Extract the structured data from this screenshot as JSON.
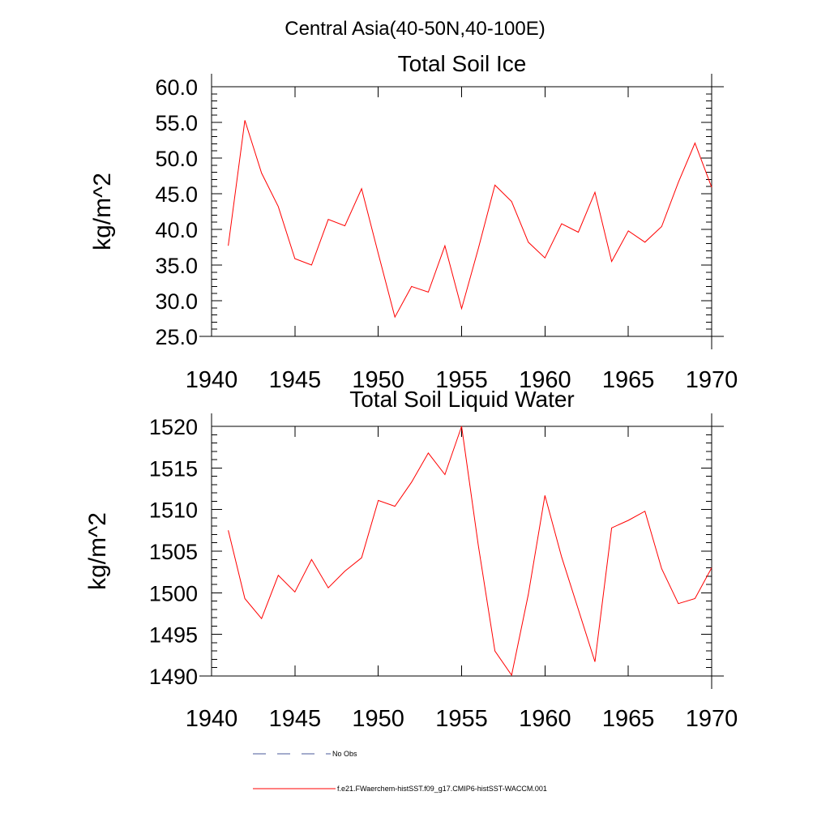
{
  "figure": {
    "title": "Central Asia(40-50N,40-100E)"
  },
  "chart_data": [
    {
      "type": "line",
      "title": "Total Soil Ice",
      "xlabel": "",
      "ylabel": "kg/m^2",
      "xlim": [
        1940,
        1970
      ],
      "ylim": [
        25,
        60
      ],
      "x_ticks": [
        1940,
        1945,
        1950,
        1955,
        1960,
        1965,
        1970
      ],
      "x_tick_labels": [
        "1940",
        "1945",
        "1950",
        "1955",
        "1960",
        "1965",
        "1970"
      ],
      "y_ticks": [
        25,
        30,
        35,
        40,
        45,
        50,
        55,
        60
      ],
      "y_tick_labels": [
        "25.0",
        "30.0",
        "35.0",
        "40.0",
        "45.0",
        "50.0",
        "55.0",
        "60.0"
      ],
      "grid": false,
      "series": [
        {
          "name": "f.e21.FWaerchem-histSST.f09_g17.CMIP6-histSST-WACCM.001",
          "color": "#ff0000",
          "x": [
            1941,
            1942,
            1943,
            1944,
            1945,
            1946,
            1947,
            1948,
            1949,
            1950,
            1951,
            1952,
            1953,
            1954,
            1955,
            1956,
            1957,
            1958,
            1959,
            1960,
            1961,
            1962,
            1963,
            1964,
            1965,
            1966,
            1967,
            1968,
            1969,
            1970
          ],
          "values": [
            37.7,
            55.3,
            47.9,
            43.2,
            35.9,
            35.0,
            41.4,
            40.5,
            45.7,
            36.6,
            27.7,
            32.0,
            31.2,
            37.7,
            28.9,
            37.3,
            46.2,
            43.9,
            38.2,
            36.0,
            40.8,
            39.6,
            45.2,
            35.5,
            39.8,
            38.2,
            40.4,
            46.6,
            52.1,
            45.9
          ]
        }
      ]
    },
    {
      "type": "line",
      "title": "Total Soil Liquid Water",
      "xlabel": "",
      "ylabel": "kg/m^2",
      "xlim": [
        1940,
        1970
      ],
      "ylim": [
        1490,
        1520
      ],
      "x_ticks": [
        1940,
        1945,
        1950,
        1955,
        1960,
        1965,
        1970
      ],
      "x_tick_labels": [
        "1940",
        "1945",
        "1950",
        "1955",
        "1960",
        "1965",
        "1970"
      ],
      "y_ticks": [
        1490,
        1495,
        1500,
        1505,
        1510,
        1515,
        1520
      ],
      "y_tick_labels": [
        "1490",
        "1495",
        "1500",
        "1505",
        "1510",
        "1515",
        "1520"
      ],
      "grid": false,
      "series": [
        {
          "name": "f.e21.FWaerchem-histSST.f09_g17.CMIP6-histSST-WACCM.001",
          "color": "#ff0000",
          "x": [
            1941,
            1942,
            1943,
            1944,
            1945,
            1946,
            1947,
            1948,
            1949,
            1950,
            1951,
            1952,
            1953,
            1954,
            1955,
            1956,
            1957,
            1958,
            1959,
            1960,
            1961,
            1962,
            1963,
            1964,
            1965,
            1966,
            1967,
            1968,
            1969,
            1970
          ],
          "values": [
            1507.5,
            1499.3,
            1496.9,
            1502.1,
            1500.1,
            1504.0,
            1500.6,
            1502.6,
            1504.2,
            1511.1,
            1510.4,
            1513.3,
            1516.8,
            1514.2,
            1520.0,
            1505.7,
            1493.0,
            1490.1,
            1499.8,
            1511.7,
            1504.3,
            1498.0,
            1491.7,
            1507.8,
            1508.7,
            1509.8,
            1502.9,
            1498.7,
            1499.3,
            1503.0
          ]
        }
      ]
    }
  ],
  "legend": {
    "placement": "bottom",
    "items": [
      {
        "label": "No Obs",
        "color": "#4a5a9a",
        "style": "dashed"
      },
      {
        "label": "f.e21.FWaerchem-histSST.f09_g17.CMIP6-histSST-WACCM.001",
        "color": "#ff0000",
        "style": "solid"
      }
    ]
  }
}
